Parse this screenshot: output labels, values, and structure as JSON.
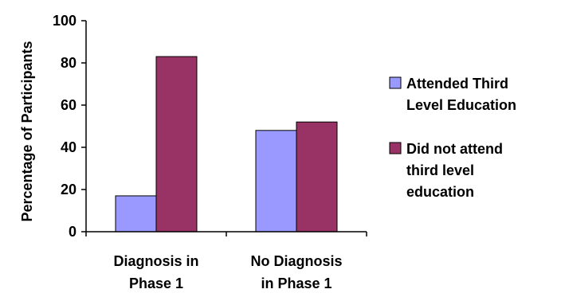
{
  "chart_data": {
    "type": "bar",
    "title": "",
    "ylabel": "Percentage of Participants",
    "xlabel": "",
    "ylim": [
      0,
      100
    ],
    "yticks": [
      "0",
      "20",
      "40",
      "60",
      "80",
      "100"
    ],
    "categories": [
      [
        "Diagnosis in",
        "Phase 1"
      ],
      [
        "No Diagnosis",
        "in Phase 1"
      ]
    ],
    "series": [
      {
        "name": [
          "Attended Third",
          "Level Education"
        ],
        "color": "#9999ff",
        "values": [
          17,
          48
        ]
      },
      {
        "name": [
          "Did not attend",
          "third level",
          "education"
        ],
        "color": "#993366",
        "values": [
          83,
          52
        ]
      }
    ],
    "legend_position": "right",
    "grid": false
  }
}
